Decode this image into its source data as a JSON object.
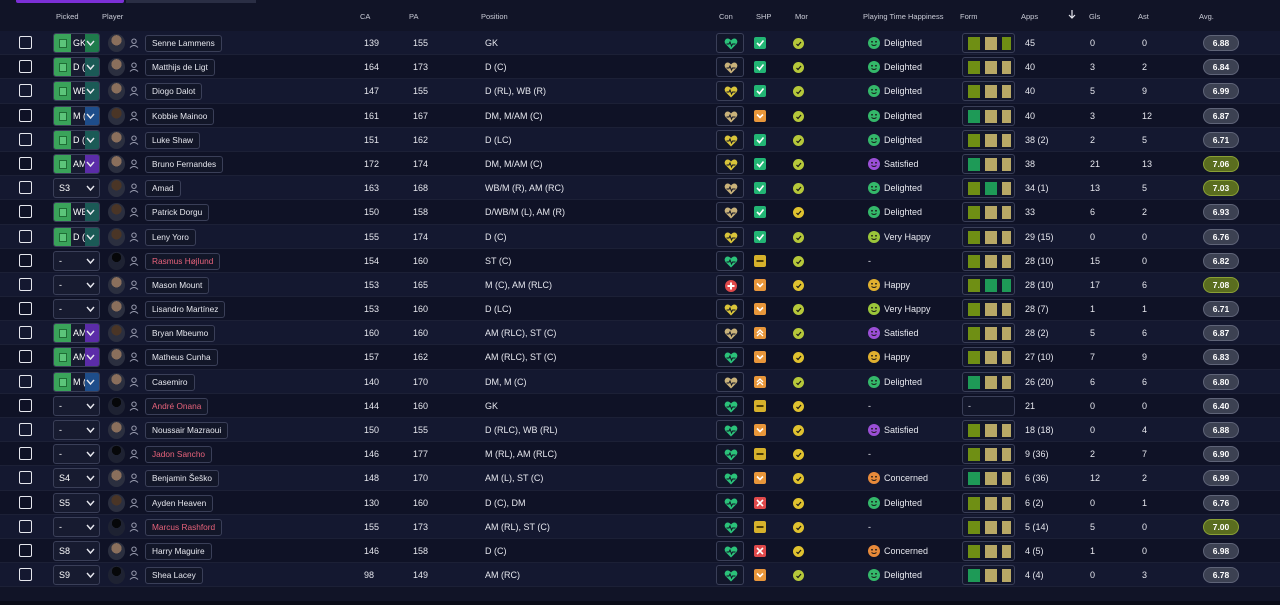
{
  "columns": {
    "picked": "Picked",
    "player": "Player",
    "ca": "CA",
    "pa": "PA",
    "position": "Position",
    "con": "Con",
    "shp": "SHP",
    "mor": "Mor",
    "playing_time_happiness": "Playing Time Happiness",
    "form": "Form",
    "apps": "Apps",
    "gls": "Gls",
    "ast": "Ast",
    "avg": "Avg."
  },
  "sort": {
    "column": "apps",
    "direction": "descending",
    "icon": "arrow-down-icon"
  },
  "colors": {
    "background": "#111427",
    "accent": "#7b2fd6",
    "form_olive": "#9e9a3a",
    "form_green": "#1e9a57",
    "form_lime": "#6f8f14",
    "form_tan": "#b8a866",
    "con_green": "#2bc27a",
    "shp_green": "#22b574",
    "shp_orange": "#e8963a",
    "shp_yellow": "#d6b12b",
    "shp_red": "#e0494b",
    "mor_lime": "#b6c83a",
    "mor_yellow": "#e0c22f",
    "happy_green": "#34b86a",
    "happy_lime": "#9bc63a",
    "happy_purple": "#9b4fd6",
    "happy_yellow": "#e0b02f",
    "happy_orange": "#e88a3a"
  },
  "players": [
    {
      "picked": "GK",
      "pick_style": "gk",
      "name": "Senne Lammens",
      "red": false,
      "ca": "139",
      "pa": "155",
      "position": "GK",
      "con": "green",
      "shp": "green",
      "mor": "lime",
      "happiness": "Delighted",
      "happy_color": "green",
      "form": [
        "lime",
        "tan",
        "lime"
      ],
      "apps": "45",
      "gls": "0",
      "ast": "0",
      "avg": "6.88",
      "avg_good": false,
      "avatar": "light"
    },
    {
      "picked": "D (C)",
      "pick_style": "teal",
      "name": "Matthijs de Ligt",
      "red": false,
      "ca": "164",
      "pa": "173",
      "position": "D (C)",
      "con": "tan",
      "shp": "green",
      "mor": "lime",
      "happiness": "Delighted",
      "happy_color": "green",
      "form": [
        "lime",
        "tan",
        "tan"
      ],
      "apps": "40",
      "gls": "3",
      "ast": "2",
      "avg": "6.84",
      "avg_good": false,
      "avatar": "light"
    },
    {
      "picked": "WB",
      "pick_style": "teal",
      "name": "Diogo Dalot",
      "red": false,
      "ca": "147",
      "pa": "155",
      "position": "D (RL), WB (R)",
      "con": "yellow",
      "shp": "green",
      "mor": "lime",
      "happiness": "Delighted",
      "happy_color": "green",
      "form": [
        "lime",
        "tan",
        "tan"
      ],
      "apps": "40",
      "gls": "5",
      "ast": "9",
      "avg": "6.99",
      "avg_good": false,
      "avatar": "light"
    },
    {
      "picked": "M (C)",
      "pick_style": "blue",
      "name": "Kobbie Mainoo",
      "red": false,
      "ca": "161",
      "pa": "167",
      "position": "DM, M/AM (C)",
      "con": "tan",
      "shp": "orange",
      "mor": "lime",
      "happiness": "Delighted",
      "happy_color": "green",
      "form": [
        "green",
        "tan",
        "tan"
      ],
      "apps": "40",
      "gls": "3",
      "ast": "12",
      "avg": "6.87",
      "avg_good": false,
      "avatar": "dark"
    },
    {
      "picked": "D (L)",
      "pick_style": "teal",
      "name": "Luke Shaw",
      "red": false,
      "ca": "151",
      "pa": "162",
      "position": "D (LC)",
      "con": "yellow",
      "shp": "green",
      "mor": "lime",
      "happiness": "Delighted",
      "happy_color": "green",
      "form": [
        "lime",
        "tan",
        "tan"
      ],
      "apps": "38 (2)",
      "gls": "2",
      "ast": "5",
      "avg": "6.71",
      "avg_good": false,
      "avatar": "light"
    },
    {
      "picked": "AM",
      "pick_style": "purple",
      "name": "Bruno Fernandes",
      "red": false,
      "ca": "172",
      "pa": "174",
      "position": "DM, M/AM (C)",
      "con": "yellow",
      "shp": "green",
      "mor": "lime",
      "happiness": "Satisfied",
      "happy_color": "purple",
      "form": [
        "green",
        "tan",
        "tan"
      ],
      "apps": "38",
      "gls": "21",
      "ast": "13",
      "avg": "7.06",
      "avg_good": true,
      "avatar": "light"
    },
    {
      "picked": "S3",
      "pick_style": "sub",
      "name": "Amad",
      "red": false,
      "ca": "163",
      "pa": "168",
      "position": "WB/M (R), AM (RC)",
      "con": "tan",
      "shp": "green",
      "mor": "lime",
      "happiness": "Delighted",
      "happy_color": "green",
      "form": [
        "lime",
        "green",
        "tan"
      ],
      "apps": "34 (1)",
      "gls": "13",
      "ast": "5",
      "avg": "7.03",
      "avg_good": true,
      "avatar": "dark"
    },
    {
      "picked": "WB",
      "pick_style": "teal",
      "name": "Patrick Dorgu",
      "red": false,
      "ca": "150",
      "pa": "158",
      "position": "D/WB/M (L), AM (R)",
      "con": "tan",
      "shp": "green",
      "mor": "yellow",
      "happiness": "Delighted",
      "happy_color": "green",
      "form": [
        "lime",
        "tan",
        "tan"
      ],
      "apps": "33",
      "gls": "6",
      "ast": "2",
      "avg": "6.93",
      "avg_good": false,
      "avatar": "dark"
    },
    {
      "picked": "D (C)",
      "pick_style": "teal",
      "name": "Leny Yoro",
      "red": false,
      "ca": "155",
      "pa": "174",
      "position": "D (C)",
      "con": "yellow",
      "shp": "green",
      "mor": "lime",
      "happiness": "Very Happy",
      "happy_color": "lime",
      "form": [
        "lime",
        "tan",
        "tan"
      ],
      "apps": "29 (15)",
      "gls": "0",
      "ast": "0",
      "avg": "6.76",
      "avg_good": false,
      "avatar": "dark"
    },
    {
      "picked": "-",
      "pick_style": "sub",
      "name": "Rasmus Højlund",
      "red": true,
      "ca": "154",
      "pa": "160",
      "position": "ST (C)",
      "con": "green",
      "shp": "yellow",
      "mor": "lime",
      "happiness": "-",
      "happy_color": "",
      "form": [
        "lime",
        "tan",
        "tan"
      ],
      "apps": "28 (10)",
      "gls": "15",
      "ast": "0",
      "avg": "6.82",
      "avg_good": false,
      "avatar": "sil"
    },
    {
      "picked": "-",
      "pick_style": "sub",
      "name": "Mason Mount",
      "red": false,
      "ca": "153",
      "pa": "165",
      "position": "M (C), AM (RLC)",
      "con": "red",
      "shp": "orange",
      "mor": "yellow",
      "happiness": "Happy",
      "happy_color": "yellow",
      "form": [
        "lime",
        "green",
        "green"
      ],
      "apps": "28 (10)",
      "gls": "17",
      "ast": "6",
      "avg": "7.08",
      "avg_good": true,
      "avatar": "light"
    },
    {
      "picked": "-",
      "pick_style": "sub",
      "name": "Lisandro Martínez",
      "red": false,
      "ca": "153",
      "pa": "160",
      "position": "D (LC)",
      "con": "yellow",
      "shp": "orange",
      "mor": "lime",
      "happiness": "Very Happy",
      "happy_color": "lime",
      "form": [
        "lime",
        "tan",
        "tan"
      ],
      "apps": "28 (7)",
      "gls": "1",
      "ast": "1",
      "avg": "6.71",
      "avg_good": false,
      "avatar": "light"
    },
    {
      "picked": "AM",
      "pick_style": "purple",
      "name": "Bryan Mbeumo",
      "red": false,
      "ca": "160",
      "pa": "160",
      "position": "AM (RLC), ST (C)",
      "con": "tan",
      "shp": "orange-up",
      "mor": "lime",
      "happiness": "Satisfied",
      "happy_color": "purple",
      "form": [
        "lime",
        "tan",
        "tan"
      ],
      "apps": "28 (2)",
      "gls": "5",
      "ast": "6",
      "avg": "6.87",
      "avg_good": false,
      "avatar": "dark"
    },
    {
      "picked": "AM",
      "pick_style": "purple",
      "name": "Matheus Cunha",
      "red": false,
      "ca": "157",
      "pa": "162",
      "position": "AM (RLC), ST (C)",
      "con": "green",
      "shp": "orange",
      "mor": "yellow",
      "happiness": "Happy",
      "happy_color": "yellow",
      "form": [
        "lime",
        "tan",
        "tan"
      ],
      "apps": "27 (10)",
      "gls": "7",
      "ast": "9",
      "avg": "6.83",
      "avg_good": false,
      "avatar": "light"
    },
    {
      "picked": "M (C)",
      "pick_style": "blue",
      "name": "Casemiro",
      "red": false,
      "ca": "140",
      "pa": "170",
      "position": "DM, M (C)",
      "con": "tan",
      "shp": "orange-up",
      "mor": "lime",
      "happiness": "Delighted",
      "happy_color": "green",
      "form": [
        "green",
        "tan",
        "tan"
      ],
      "apps": "26 (20)",
      "gls": "6",
      "ast": "6",
      "avg": "6.80",
      "avg_good": false,
      "avatar": "light"
    },
    {
      "picked": "-",
      "pick_style": "sub",
      "name": "André Onana",
      "red": true,
      "ca": "144",
      "pa": "160",
      "position": "GK",
      "con": "green",
      "shp": "yellow",
      "mor": "yellow",
      "happiness": "-",
      "happy_color": "",
      "form": [],
      "apps": "21",
      "gls": "0",
      "ast": "0",
      "avg": "6.40",
      "avg_good": false,
      "avatar": "sil"
    },
    {
      "picked": "-",
      "pick_style": "sub",
      "name": "Noussair Mazraoui",
      "red": false,
      "ca": "150",
      "pa": "155",
      "position": "D (RLC), WB (RL)",
      "con": "green",
      "shp": "orange",
      "mor": "yellow",
      "happiness": "Satisfied",
      "happy_color": "purple",
      "form": [
        "lime",
        "tan",
        "tan"
      ],
      "apps": "18 (18)",
      "gls": "0",
      "ast": "4",
      "avg": "6.88",
      "avg_good": false,
      "avatar": "light"
    },
    {
      "picked": "-",
      "pick_style": "sub",
      "name": "Jadon Sancho",
      "red": true,
      "ca": "146",
      "pa": "177",
      "position": "M (RL), AM (RLC)",
      "con": "green",
      "shp": "yellow",
      "mor": "yellow",
      "happiness": "-",
      "happy_color": "",
      "form": [
        "lime",
        "tan",
        "tan"
      ],
      "apps": "9 (36)",
      "gls": "2",
      "ast": "7",
      "avg": "6.90",
      "avg_good": false,
      "avatar": "sil"
    },
    {
      "picked": "S4",
      "pick_style": "sub",
      "name": "Benjamin Šeško",
      "red": false,
      "ca": "148",
      "pa": "170",
      "position": "AM (L), ST (C)",
      "con": "green",
      "shp": "orange",
      "mor": "yellow",
      "happiness": "Concerned",
      "happy_color": "orange",
      "form": [
        "green",
        "tan",
        "tan"
      ],
      "apps": "6 (36)",
      "gls": "12",
      "ast": "2",
      "avg": "6.99",
      "avg_good": false,
      "avatar": "light"
    },
    {
      "picked": "S5",
      "pick_style": "sub",
      "name": "Ayden Heaven",
      "red": false,
      "ca": "130",
      "pa": "160",
      "position": "D (C), DM",
      "con": "green",
      "shp": "red",
      "mor": "yellow",
      "happiness": "Delighted",
      "happy_color": "green",
      "form": [
        "lime",
        "tan",
        "tan"
      ],
      "apps": "6 (2)",
      "gls": "0",
      "ast": "1",
      "avg": "6.76",
      "avg_good": false,
      "avatar": "dark"
    },
    {
      "picked": "-",
      "pick_style": "sub",
      "name": "Marcus Rashford",
      "red": true,
      "ca": "155",
      "pa": "173",
      "position": "AM (RL), ST (C)",
      "con": "green",
      "shp": "yellow",
      "mor": "yellow",
      "happiness": "-",
      "happy_color": "",
      "form": [
        "lime",
        "tan",
        "tan"
      ],
      "apps": "5 (14)",
      "gls": "5",
      "ast": "0",
      "avg": "7.00",
      "avg_good": true,
      "avatar": "sil"
    },
    {
      "picked": "S8",
      "pick_style": "sub",
      "name": "Harry Maguire",
      "red": false,
      "ca": "146",
      "pa": "158",
      "position": "D (C)",
      "con": "green",
      "shp": "red",
      "mor": "yellow",
      "happiness": "Concerned",
      "happy_color": "orange",
      "form": [
        "lime",
        "tan",
        "tan"
      ],
      "apps": "4 (5)",
      "gls": "1",
      "ast": "0",
      "avg": "6.98",
      "avg_good": false,
      "avatar": "light"
    },
    {
      "picked": "S9",
      "pick_style": "sub",
      "name": "Shea Lacey",
      "red": false,
      "ca": "98",
      "pa": "149",
      "position": "AM (RC)",
      "con": "green",
      "shp": "orange",
      "mor": "lime",
      "happiness": "Delighted",
      "happy_color": "green",
      "form": [
        "green",
        "tan",
        "tan"
      ],
      "apps": "4 (4)",
      "gls": "0",
      "ast": "3",
      "avg": "6.78",
      "avg_good": false,
      "avatar": "sil"
    }
  ]
}
